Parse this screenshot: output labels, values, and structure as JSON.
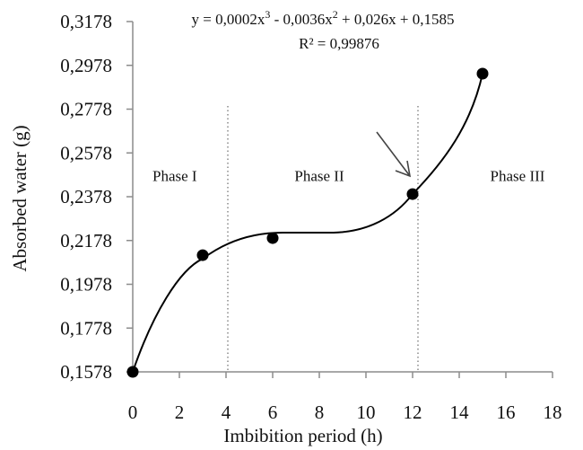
{
  "chart_data": {
    "type": "scatter",
    "title": "",
    "xlabel": "Imbibition period (h)",
    "ylabel": "Absorbed water (g)",
    "xlim": [
      0,
      18
    ],
    "ylim": [
      0.1578,
      0.3178
    ],
    "x_ticks": [
      0,
      2,
      4,
      6,
      8,
      10,
      12,
      14,
      16,
      18
    ],
    "y_ticks": [
      0.1578,
      0.1778,
      0.1978,
      0.2178,
      0.2378,
      0.2578,
      0.2778,
      0.2978,
      0.3178
    ],
    "y_tick_labels": [
      "0,1578",
      "0,1778",
      "0,1978",
      "0,2178",
      "0,2378",
      "0,2578",
      "0,2778",
      "0,2978",
      "0,3178"
    ],
    "x_tick_labels": [
      "0",
      "2",
      "4",
      "6",
      "8",
      "10",
      "12",
      "14",
      "16",
      "18"
    ],
    "grid": false,
    "legend": null,
    "series": [
      {
        "name": "Absorbed water",
        "marker": "circle",
        "color": "#000000",
        "x": [
          0,
          3,
          6,
          12,
          15
        ],
        "y": [
          0.1578,
          0.2111,
          0.2189,
          0.239,
          0.294
        ]
      }
    ],
    "trendline": {
      "type": "polynomial",
      "order": 3,
      "equation": "y = 0,0002x³ - 0,0036x² + 0,026x + 0,1585",
      "r_squared": "R² = 0,99876",
      "coefficients": [
        0.0002,
        -0.0036,
        0.026,
        0.1585
      ],
      "r2_value": 0.99876
    },
    "annotations": {
      "phase_boundaries": [
        4,
        12
      ],
      "phase_labels": [
        {
          "text": "Phase I",
          "x": 1.8,
          "y": 0.2475
        },
        {
          "text": "Phase II",
          "x": 8.0,
          "y": 0.2475
        },
        {
          "text": "Phase III",
          "x": 16.5,
          "y": 0.2475
        }
      ],
      "arrow": {
        "from": [
          10.45,
          0.2637
        ],
        "to": [
          11.88,
          0.2436
        ],
        "points_to": "x=12 data point"
      }
    }
  },
  "labels": {
    "equation_line1": "y = 0,0002x",
    "equation_line2": "R² = 0,99876",
    "xlabel": "Imbibition period (h)",
    "ylabel": "Absorbed water (g)",
    "phase1": "Phase I",
    "phase2": "Phase II",
    "phase3": "Phase III"
  }
}
